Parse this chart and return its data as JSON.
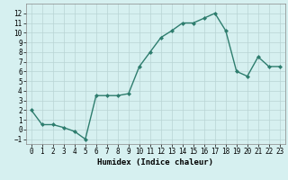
{
  "x": [
    0,
    1,
    2,
    3,
    4,
    5,
    6,
    7,
    8,
    9,
    10,
    11,
    12,
    13,
    14,
    15,
    16,
    17,
    18,
    19,
    20,
    21,
    22,
    23
  ],
  "y": [
    2,
    0.5,
    0.5,
    0.2,
    -0.2,
    -1,
    3.5,
    3.5,
    3.5,
    3.7,
    6.5,
    8,
    9.5,
    10.2,
    11,
    11,
    11.5,
    12,
    10.2,
    6,
    5.5,
    7.5,
    6.5,
    6.5
  ],
  "xlabel": "Humidex (Indice chaleur)",
  "xlim": [
    -0.5,
    23.5
  ],
  "ylim": [
    -1.5,
    13
  ],
  "yticks": [
    -1,
    0,
    1,
    2,
    3,
    4,
    5,
    6,
    7,
    8,
    9,
    10,
    11,
    12
  ],
  "xticks": [
    0,
    1,
    2,
    3,
    4,
    5,
    6,
    7,
    8,
    9,
    10,
    11,
    12,
    13,
    14,
    15,
    16,
    17,
    18,
    19,
    20,
    21,
    22,
    23
  ],
  "line_color": "#2e7d6e",
  "marker": "D",
  "marker_size": 2.0,
  "bg_color": "#d6f0f0",
  "grid_color": "#b8d4d4",
  "xlabel_fontsize": 6.5,
  "tick_fontsize": 5.5,
  "line_width": 1.0
}
